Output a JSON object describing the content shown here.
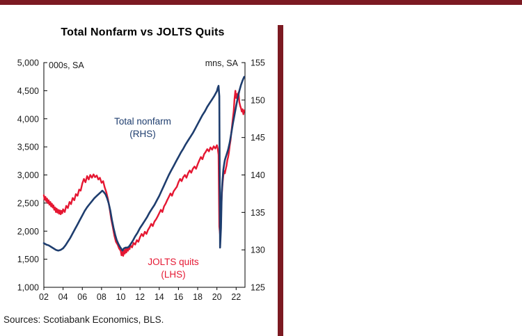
{
  "chart": {
    "title": "Total Nonfarm vs JOLTS Quits",
    "left_axis_unit": "000s, SA",
    "right_axis_unit": "mns, SA",
    "annotations": {
      "nonfarm": {
        "line1": "Total nonfarm",
        "line2": "(RHS)",
        "color": "#1e3d6e"
      },
      "jolts": {
        "line1": "JOLTS quits",
        "line2": "(LHS)",
        "color": "#e51732"
      }
    },
    "source": "Sources: Scotiabank Economics, BLS.",
    "accent_color": "#7c1a22"
  },
  "chart_data": {
    "type": "line",
    "title": "Total Nonfarm vs JOLTS Quits",
    "x_range": [
      2002.0,
      2022.92
    ],
    "x_ticks": {
      "years": [
        2002,
        2004,
        2006,
        2008,
        2010,
        2012,
        2014,
        2016,
        2018,
        2020,
        2022
      ],
      "labels": [
        "02",
        "04",
        "06",
        "08",
        "10",
        "12",
        "14",
        "16",
        "18",
        "20",
        "22"
      ]
    },
    "left_axis": {
      "label": "000s, SA",
      "range": [
        1000,
        5000
      ],
      "tick_values": [
        1000,
        1500,
        2000,
        2500,
        3000,
        3500,
        4000,
        4500,
        5000
      ],
      "tick_labels": [
        "1,000",
        "1,500",
        "2,000",
        "2,500",
        "3,000",
        "3,500",
        "4,000",
        "4,500",
        "5,000"
      ]
    },
    "right_axis": {
      "label": "mns, SA",
      "range": [
        125,
        155
      ],
      "tick_values": [
        125,
        130,
        135,
        140,
        145,
        150,
        155
      ],
      "tick_labels": [
        "125",
        "130",
        "135",
        "140",
        "145",
        "150",
        "155"
      ]
    },
    "grid": false,
    "legend_position": "inline-annotations",
    "series": [
      {
        "name": "JOLTS quits (LHS)",
        "axis": "left",
        "color": "#e51732",
        "width": 2.4,
        "points": [
          [
            2002.0,
            2640
          ],
          [
            2002.08,
            2560
          ],
          [
            2002.17,
            2610
          ],
          [
            2002.25,
            2530
          ],
          [
            2002.33,
            2580
          ],
          [
            2002.42,
            2500
          ],
          [
            2002.5,
            2550
          ],
          [
            2002.58,
            2470
          ],
          [
            2002.67,
            2520
          ],
          [
            2002.75,
            2440
          ],
          [
            2002.83,
            2490
          ],
          [
            2002.92,
            2420
          ],
          [
            2003.0,
            2460
          ],
          [
            2003.08,
            2380
          ],
          [
            2003.17,
            2420
          ],
          [
            2003.25,
            2340
          ],
          [
            2003.33,
            2400
          ],
          [
            2003.42,
            2330
          ],
          [
            2003.5,
            2380
          ],
          [
            2003.58,
            2310
          ],
          [
            2003.67,
            2370
          ],
          [
            2003.75,
            2300
          ],
          [
            2003.83,
            2360
          ],
          [
            2003.92,
            2320
          ],
          [
            2004.0,
            2390
          ],
          [
            2004.17,
            2340
          ],
          [
            2004.33,
            2450
          ],
          [
            2004.5,
            2410
          ],
          [
            2004.67,
            2520
          ],
          [
            2004.83,
            2480
          ],
          [
            2005.0,
            2590
          ],
          [
            2005.17,
            2550
          ],
          [
            2005.33,
            2660
          ],
          [
            2005.5,
            2630
          ],
          [
            2005.67,
            2740
          ],
          [
            2005.83,
            2720
          ],
          [
            2006.0,
            2850
          ],
          [
            2006.17,
            2930
          ],
          [
            2006.33,
            2870
          ],
          [
            2006.5,
            2980
          ],
          [
            2006.67,
            2920
          ],
          [
            2006.83,
            3000
          ],
          [
            2007.0,
            2950
          ],
          [
            2007.17,
            3010
          ],
          [
            2007.33,
            2960
          ],
          [
            2007.5,
            2990
          ],
          [
            2007.67,
            2920
          ],
          [
            2007.83,
            2950
          ],
          [
            2008.0,
            2860
          ],
          [
            2008.17,
            2890
          ],
          [
            2008.33,
            2780
          ],
          [
            2008.5,
            2690
          ],
          [
            2008.67,
            2570
          ],
          [
            2008.83,
            2410
          ],
          [
            2009.0,
            2220
          ],
          [
            2009.17,
            2070
          ],
          [
            2009.33,
            1920
          ],
          [
            2009.5,
            1810
          ],
          [
            2009.67,
            1760
          ],
          [
            2009.83,
            1690
          ],
          [
            2010.0,
            1650
          ],
          [
            2010.08,
            1570
          ],
          [
            2010.17,
            1630
          ],
          [
            2010.25,
            1560
          ],
          [
            2010.33,
            1660
          ],
          [
            2010.42,
            1600
          ],
          [
            2010.5,
            1680
          ],
          [
            2010.58,
            1620
          ],
          [
            2010.67,
            1700
          ],
          [
            2010.75,
            1650
          ],
          [
            2010.83,
            1720
          ],
          [
            2010.92,
            1680
          ],
          [
            2011.0,
            1750
          ],
          [
            2011.17,
            1710
          ],
          [
            2011.33,
            1790
          ],
          [
            2011.5,
            1760
          ],
          [
            2011.67,
            1840
          ],
          [
            2011.83,
            1810
          ],
          [
            2012.0,
            1890
          ],
          [
            2012.17,
            1950
          ],
          [
            2012.33,
            1910
          ],
          [
            2012.5,
            1990
          ],
          [
            2012.67,
            1950
          ],
          [
            2012.83,
            2020
          ],
          [
            2013.0,
            2070
          ],
          [
            2013.17,
            2130
          ],
          [
            2013.33,
            2090
          ],
          [
            2013.5,
            2170
          ],
          [
            2013.67,
            2210
          ],
          [
            2013.83,
            2260
          ],
          [
            2014.0,
            2320
          ],
          [
            2014.17,
            2380
          ],
          [
            2014.33,
            2340
          ],
          [
            2014.5,
            2440
          ],
          [
            2014.67,
            2490
          ],
          [
            2014.83,
            2550
          ],
          [
            2015.0,
            2610
          ],
          [
            2015.17,
            2670
          ],
          [
            2015.33,
            2630
          ],
          [
            2015.5,
            2710
          ],
          [
            2015.67,
            2750
          ],
          [
            2015.83,
            2790
          ],
          [
            2016.0,
            2870
          ],
          [
            2016.17,
            2930
          ],
          [
            2016.33,
            2890
          ],
          [
            2016.5,
            2960
          ],
          [
            2016.67,
            3000
          ],
          [
            2016.83,
            2950
          ],
          [
            2017.0,
            3030
          ],
          [
            2017.17,
            3080
          ],
          [
            2017.33,
            3040
          ],
          [
            2017.5,
            3110
          ],
          [
            2017.67,
            3150
          ],
          [
            2017.83,
            3110
          ],
          [
            2018.0,
            3190
          ],
          [
            2018.17,
            3260
          ],
          [
            2018.33,
            3320
          ],
          [
            2018.5,
            3280
          ],
          [
            2018.67,
            3370
          ],
          [
            2018.83,
            3410
          ],
          [
            2019.0,
            3460
          ],
          [
            2019.17,
            3420
          ],
          [
            2019.33,
            3490
          ],
          [
            2019.5,
            3450
          ],
          [
            2019.67,
            3510
          ],
          [
            2019.83,
            3470
          ],
          [
            2020.0,
            3530
          ],
          [
            2020.08,
            3470
          ],
          [
            2020.17,
            3360
          ],
          [
            2020.25,
            2080
          ],
          [
            2020.33,
            1940
          ],
          [
            2020.42,
            2250
          ],
          [
            2020.5,
            2630
          ],
          [
            2020.58,
            2840
          ],
          [
            2020.67,
            2990
          ],
          [
            2020.75,
            3070
          ],
          [
            2020.83,
            3030
          ],
          [
            2020.92,
            3110
          ],
          [
            2021.0,
            3170
          ],
          [
            2021.08,
            3260
          ],
          [
            2021.17,
            3320
          ],
          [
            2021.25,
            3400
          ],
          [
            2021.33,
            3520
          ],
          [
            2021.42,
            3620
          ],
          [
            2021.5,
            3760
          ],
          [
            2021.58,
            3880
          ],
          [
            2021.67,
            4020
          ],
          [
            2021.75,
            4140
          ],
          [
            2021.83,
            4350
          ],
          [
            2021.92,
            4500
          ],
          [
            2022.0,
            4370
          ],
          [
            2022.08,
            4440
          ],
          [
            2022.17,
            4380
          ],
          [
            2022.25,
            4470
          ],
          [
            2022.33,
            4300
          ],
          [
            2022.42,
            4230
          ],
          [
            2022.5,
            4190
          ],
          [
            2022.58,
            4130
          ],
          [
            2022.67,
            4170
          ],
          [
            2022.75,
            4080
          ],
          [
            2022.83,
            4150
          ]
        ]
      },
      {
        "name": "Total nonfarm (RHS)",
        "axis": "right",
        "color": "#1e3d6e",
        "width": 2.6,
        "points": [
          [
            2002.0,
            130.9
          ],
          [
            2002.25,
            130.7
          ],
          [
            2002.5,
            130.6
          ],
          [
            2002.75,
            130.4
          ],
          [
            2003.0,
            130.2
          ],
          [
            2003.25,
            130.0
          ],
          [
            2003.5,
            129.9
          ],
          [
            2003.75,
            130.0
          ],
          [
            2004.0,
            130.2
          ],
          [
            2004.25,
            130.6
          ],
          [
            2004.5,
            131.1
          ],
          [
            2004.75,
            131.6
          ],
          [
            2005.0,
            132.2
          ],
          [
            2005.25,
            132.8
          ],
          [
            2005.5,
            133.4
          ],
          [
            2005.75,
            134.0
          ],
          [
            2006.0,
            134.6
          ],
          [
            2006.25,
            135.2
          ],
          [
            2006.5,
            135.7
          ],
          [
            2006.75,
            136.1
          ],
          [
            2007.0,
            136.5
          ],
          [
            2007.25,
            136.9
          ],
          [
            2007.5,
            137.2
          ],
          [
            2007.75,
            137.5
          ],
          [
            2008.0,
            137.8
          ],
          [
            2008.08,
            137.9
          ],
          [
            2008.25,
            137.7
          ],
          [
            2008.42,
            137.4
          ],
          [
            2008.58,
            136.9
          ],
          [
            2008.75,
            136.2
          ],
          [
            2008.92,
            135.2
          ],
          [
            2009.08,
            134.0
          ],
          [
            2009.25,
            132.9
          ],
          [
            2009.42,
            132.0
          ],
          [
            2009.58,
            131.3
          ],
          [
            2009.75,
            130.8
          ],
          [
            2009.92,
            130.4
          ],
          [
            2010.08,
            130.1
          ],
          [
            2010.17,
            129.9
          ],
          [
            2010.33,
            130.2
          ],
          [
            2010.5,
            130.3
          ],
          [
            2010.67,
            130.3
          ],
          [
            2010.83,
            130.4
          ],
          [
            2011.0,
            130.7
          ],
          [
            2011.25,
            131.2
          ],
          [
            2011.5,
            131.8
          ],
          [
            2011.75,
            132.3
          ],
          [
            2012.0,
            132.9
          ],
          [
            2012.25,
            133.4
          ],
          [
            2012.5,
            133.9
          ],
          [
            2012.75,
            134.4
          ],
          [
            2013.0,
            135.0
          ],
          [
            2013.25,
            135.5
          ],
          [
            2013.5,
            136.0
          ],
          [
            2013.75,
            136.6
          ],
          [
            2014.0,
            137.2
          ],
          [
            2014.25,
            137.9
          ],
          [
            2014.5,
            138.6
          ],
          [
            2014.75,
            139.3
          ],
          [
            2015.0,
            140.0
          ],
          [
            2015.25,
            140.6
          ],
          [
            2015.5,
            141.2
          ],
          [
            2015.75,
            141.8
          ],
          [
            2016.0,
            142.4
          ],
          [
            2016.25,
            143.0
          ],
          [
            2016.5,
            143.5
          ],
          [
            2016.75,
            144.1
          ],
          [
            2017.0,
            144.6
          ],
          [
            2017.25,
            145.1
          ],
          [
            2017.5,
            145.6
          ],
          [
            2017.75,
            146.2
          ],
          [
            2018.0,
            146.8
          ],
          [
            2018.25,
            147.4
          ],
          [
            2018.5,
            148.0
          ],
          [
            2018.75,
            148.5
          ],
          [
            2019.0,
            149.1
          ],
          [
            2019.25,
            149.6
          ],
          [
            2019.5,
            150.1
          ],
          [
            2019.75,
            150.6
          ],
          [
            2020.0,
            151.2
          ],
          [
            2020.08,
            151.6
          ],
          [
            2020.17,
            151.9
          ],
          [
            2020.25,
            150.5
          ],
          [
            2020.33,
            130.3
          ],
          [
            2020.42,
            132.9
          ],
          [
            2020.5,
            137.6
          ],
          [
            2020.58,
            139.3
          ],
          [
            2020.67,
            140.7
          ],
          [
            2020.75,
            141.4
          ],
          [
            2020.83,
            142.0
          ],
          [
            2020.92,
            142.4
          ],
          [
            2021.0,
            142.7
          ],
          [
            2021.17,
            143.4
          ],
          [
            2021.33,
            144.3
          ],
          [
            2021.5,
            145.6
          ],
          [
            2021.67,
            146.9
          ],
          [
            2021.83,
            148.0
          ],
          [
            2022.0,
            149.2
          ],
          [
            2022.17,
            150.3
          ],
          [
            2022.33,
            151.2
          ],
          [
            2022.5,
            152.0
          ],
          [
            2022.67,
            152.6
          ],
          [
            2022.83,
            153.1
          ]
        ]
      }
    ]
  }
}
